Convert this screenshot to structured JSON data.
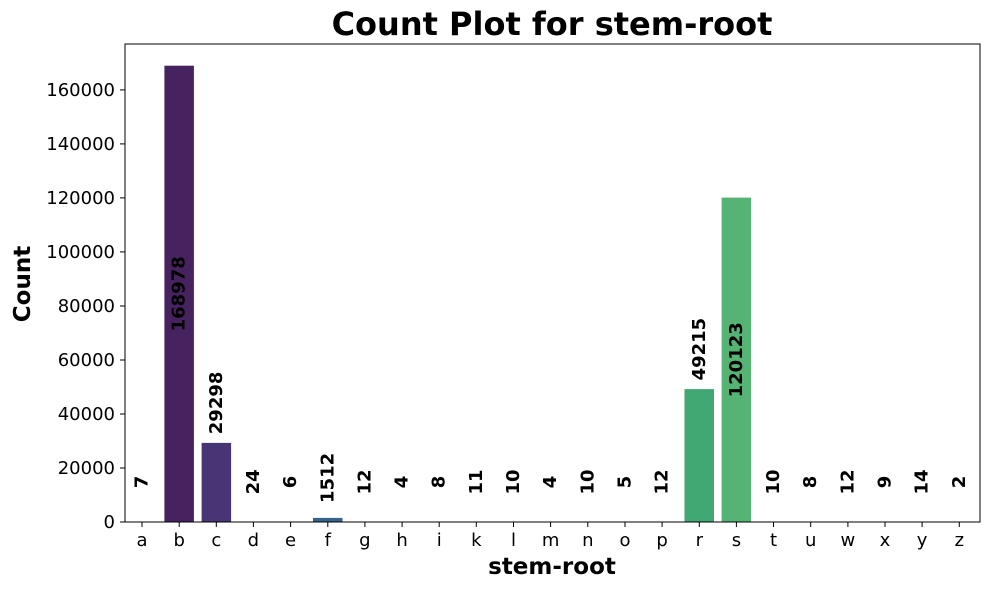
{
  "chart_data": {
    "type": "bar",
    "title": "Count Plot for stem-root",
    "xlabel": "stem-root",
    "ylabel": "Count",
    "ylim": [
      0,
      177000
    ],
    "yticks": [
      0,
      20000,
      40000,
      60000,
      80000,
      100000,
      120000,
      140000,
      160000
    ],
    "grid": false,
    "categories": [
      "a",
      "b",
      "c",
      "d",
      "e",
      "f",
      "g",
      "h",
      "i",
      "k",
      "l",
      "m",
      "n",
      "o",
      "p",
      "r",
      "s",
      "t",
      "u",
      "w",
      "x",
      "y",
      "z"
    ],
    "values": [
      7,
      168978,
      29298,
      24,
      6,
      1512,
      12,
      4,
      8,
      11,
      10,
      4,
      10,
      5,
      12,
      49215,
      120123,
      10,
      8,
      12,
      9,
      14,
      2
    ],
    "colors": [
      "#440154",
      "#46235e",
      "#473575",
      "#424c81",
      "#3b5b8b",
      "#37648d",
      "#33708e",
      "#2d7d8e",
      "#2a858e",
      "#26908d",
      "#23998a",
      "#1f9f88",
      "#21a685",
      "#27ad81",
      "#33b47a",
      "#41a873",
      "#55b374",
      "#6cc55d",
      "#85d44a",
      "#a0da39",
      "#bade28",
      "#d5e21a",
      "#fde725"
    ]
  }
}
